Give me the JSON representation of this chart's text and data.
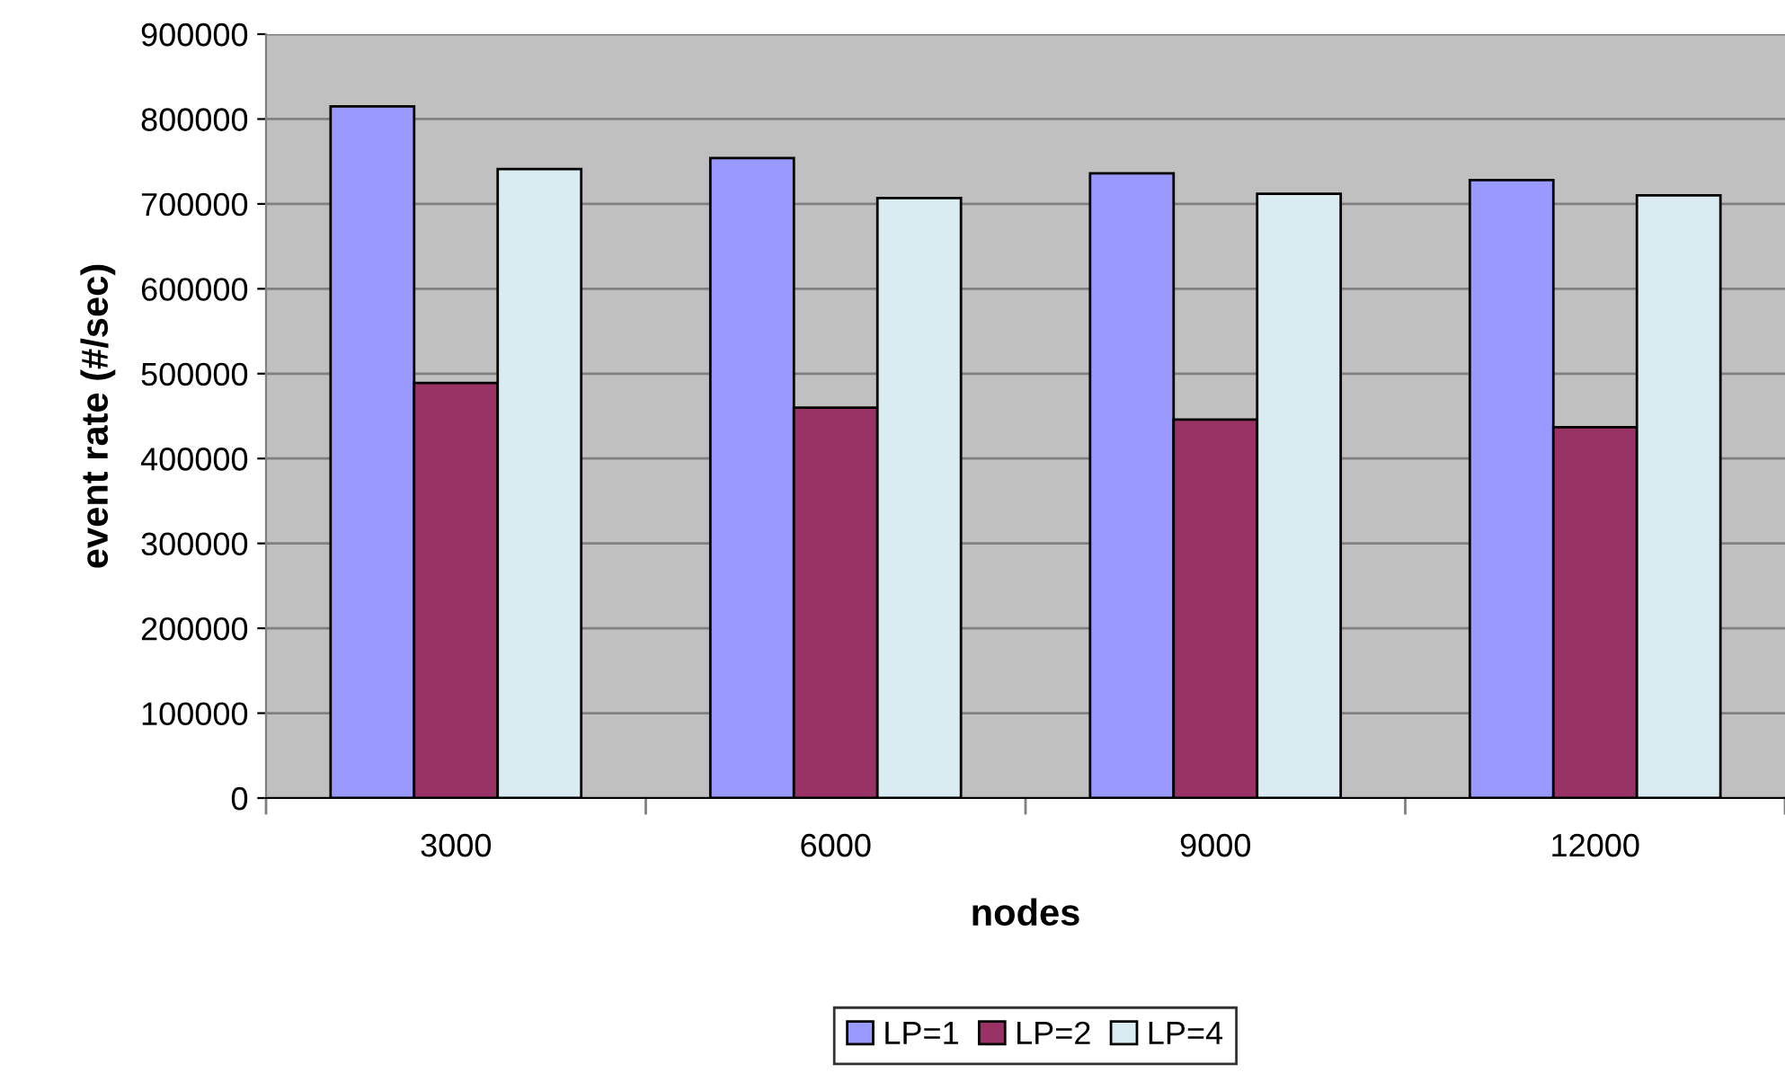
{
  "chart_data": {
    "type": "bar",
    "xlabel": "nodes",
    "ylabel": "event rate (#/sec)",
    "categories": [
      "3000",
      "6000",
      "9000",
      "12000"
    ],
    "series": [
      {
        "name": "LP=1",
        "color": "#9999ff",
        "values": [
          815000,
          754000,
          736000,
          728000
        ]
      },
      {
        "name": "LP=2",
        "color": "#993366",
        "values": [
          489000,
          460000,
          446000,
          437000
        ]
      },
      {
        "name": "LP=4",
        "color": "#daecf2",
        "values": [
          741000,
          707000,
          712000,
          710000
        ]
      }
    ],
    "ylim": [
      0,
      900000
    ],
    "yticks": [
      0,
      100000,
      200000,
      300000,
      400000,
      500000,
      600000,
      700000,
      800000,
      900000
    ],
    "grid": "y",
    "legend": "bottom"
  }
}
